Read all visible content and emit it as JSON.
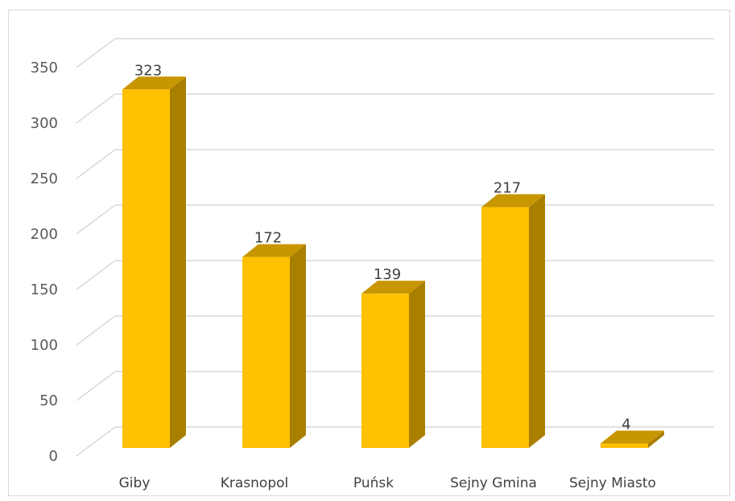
{
  "chart_data": {
    "type": "bar",
    "categories": [
      "Giby",
      "Krasnopol",
      "Puńsk",
      "Sejny Gmina",
      "Sejny Miasto"
    ],
    "values": [
      323,
      172,
      139,
      217,
      4
    ],
    "data_labels": [
      "323",
      "172",
      "139",
      "217",
      "4"
    ],
    "ylim": [
      0,
      350
    ],
    "yticks": [
      0,
      50,
      100,
      150,
      200,
      250,
      300,
      350
    ],
    "grid": true,
    "legend": "none",
    "three_d": true,
    "colors": {
      "bar_front": "#FFC000",
      "bar_top": "#C89600",
      "bar_side": "#A97F00",
      "grid": "#d9d9d9"
    }
  }
}
